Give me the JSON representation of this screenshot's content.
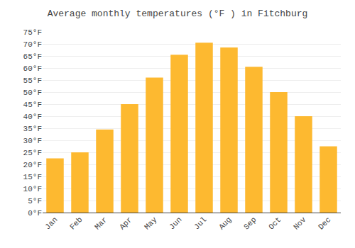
{
  "chart_data": {
    "type": "bar",
    "title": "Average monthly temperatures (°F ) in Fitchburg",
    "categories": [
      "Jan",
      "Feb",
      "Mar",
      "Apr",
      "May",
      "Jun",
      "Jul",
      "Aug",
      "Sep",
      "Oct",
      "Nov",
      "Dec"
    ],
    "values": [
      22.5,
      25.0,
      34.5,
      45.0,
      56.0,
      65.5,
      70.5,
      68.5,
      60.5,
      50.0,
      40.0,
      27.5
    ],
    "color": "#FDB930",
    "ylim": [
      0,
      75
    ],
    "yticks": [
      {
        "value": 0,
        "label": "0°F"
      },
      {
        "value": 5,
        "label": "5°F"
      },
      {
        "value": 10,
        "label": "10°F"
      },
      {
        "value": 15,
        "label": "15°F"
      },
      {
        "value": 20,
        "label": "20°F"
      },
      {
        "value": 25,
        "label": "25°F"
      },
      {
        "value": 30,
        "label": "30°F"
      },
      {
        "value": 35,
        "label": "35°F"
      },
      {
        "value": 40,
        "label": "40°F"
      },
      {
        "value": 45,
        "label": "45°F"
      },
      {
        "value": 50,
        "label": "50°F"
      },
      {
        "value": 55,
        "label": "55°F"
      },
      {
        "value": 60,
        "label": "60°F"
      },
      {
        "value": 65,
        "label": "65°F"
      },
      {
        "value": 70,
        "label": "70°F"
      },
      {
        "value": 75,
        "label": "75°F"
      }
    ],
    "grid": true
  }
}
